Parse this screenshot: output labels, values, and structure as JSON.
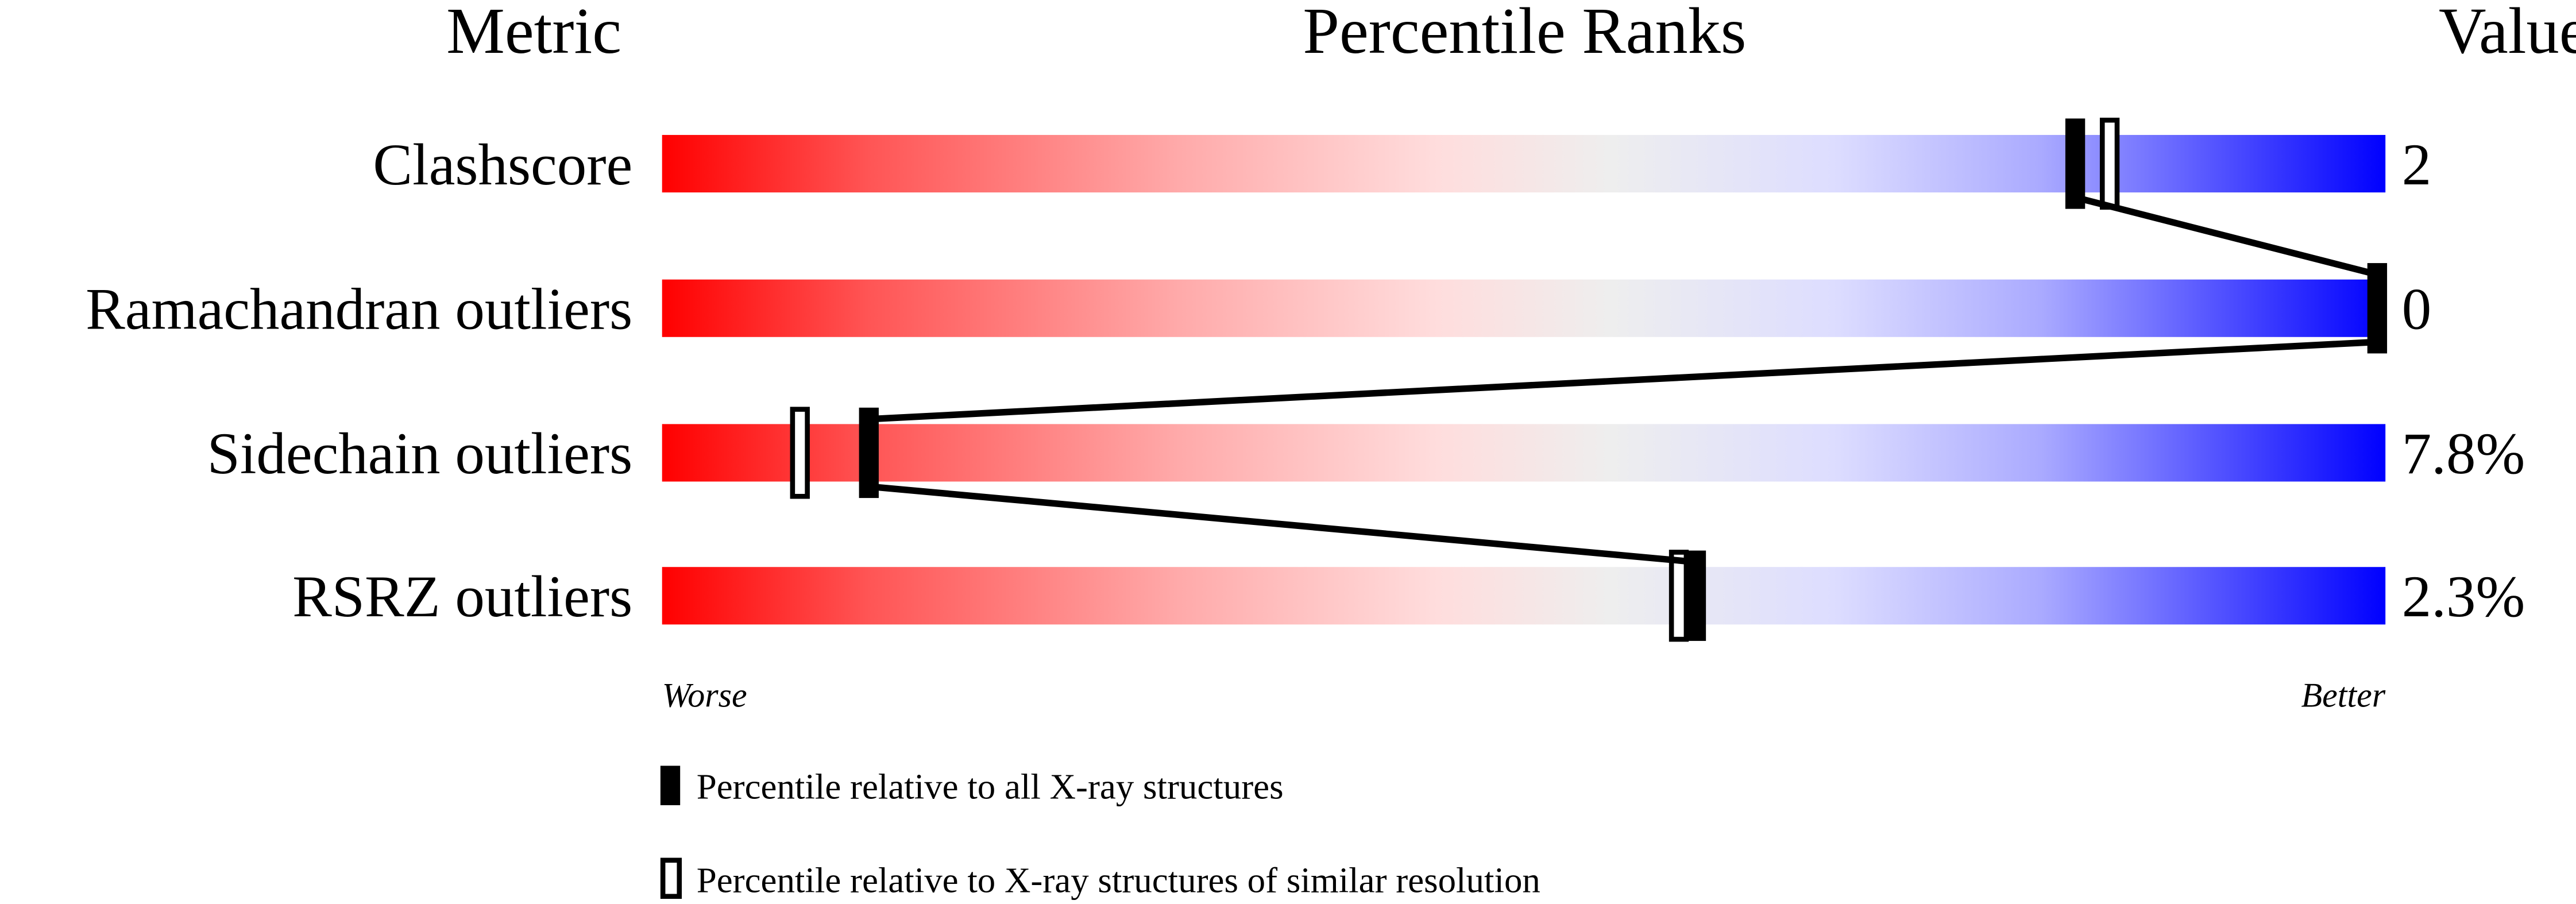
{
  "chart_data": {
    "type": "percentile-slider",
    "headers": {
      "metric": "Metric",
      "ranks": "Percentile Ranks",
      "value": "Value"
    },
    "xlim": [
      0,
      100
    ],
    "scale_labels": {
      "left": "Worse",
      "right": "Better"
    },
    "colors": {
      "worse": "#ff0000",
      "neutral": "#eeeeee",
      "better": "#0000ff",
      "marker": "#000000"
    },
    "rows": [
      {
        "metric": "Clashscore",
        "value": "2",
        "percentile_all": 82,
        "percentile_similar": 84
      },
      {
        "metric": "Ramachandran outliers",
        "value": "0",
        "percentile_all": 100,
        "percentile_similar": 100
      },
      {
        "metric": "Sidechain outliers",
        "value": "7.8%",
        "percentile_all": 12,
        "percentile_similar": 8
      },
      {
        "metric": "RSRZ outliers",
        "value": "2.3%",
        "percentile_all": 60,
        "percentile_similar": 59
      }
    ],
    "legend": [
      {
        "marker": "filled",
        "label": "Percentile relative to all X-ray structures"
      },
      {
        "marker": "open",
        "label": "Percentile relative to X-ray structures of similar resolution"
      }
    ]
  }
}
